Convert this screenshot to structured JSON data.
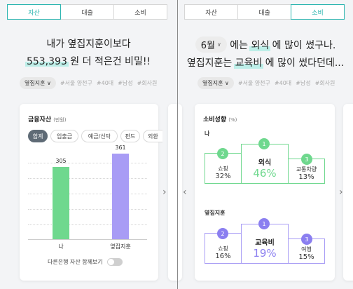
{
  "tabs": [
    "자산",
    "대출",
    "소비"
  ],
  "left": {
    "active_tab": "자산",
    "headline_line1": "내가 옆집지훈이보다",
    "headline_amount": "553,393",
    "headline_line2_rest": " 원 더 적은건 비밀!!",
    "tag_select": "옆집지훈",
    "tags": [
      "#서울 양천구",
      "#40대",
      "#남성",
      "#회사원"
    ],
    "card_title": "금융자산",
    "card_unit": "(만원)",
    "filters": [
      "합계",
      "입출금",
      "예금/신탁",
      "펀드",
      "외환"
    ],
    "toggle_label": "다른은행 자산 함께보기"
  },
  "right": {
    "active_tab": "소비",
    "month": "6월",
    "line1_a": "에는",
    "line1_highlight": "외식",
    "line1_b": "에 많이 썼구나.",
    "line2_a": "옆집지훈는",
    "line2_highlight": "교육비",
    "line2_b": "에 많이 썼다던데...",
    "tag_select": "옆집지훈",
    "tags": [
      "#서울 양천구",
      "#40대",
      "#남성",
      "#회사원"
    ],
    "card_title": "소비성향",
    "card_unit": "(%)",
    "me": {
      "title": "나",
      "ranks": [
        {
          "rank": "1",
          "label": "외식",
          "pct": "46%"
        },
        {
          "rank": "2",
          "label": "쇼핑",
          "pct": "32%"
        },
        {
          "rank": "3",
          "label": "교통차량",
          "pct": "13%"
        }
      ]
    },
    "neighbor": {
      "title": "옆집지훈",
      "ranks": [
        {
          "rank": "1",
          "label": "교육비",
          "pct": "19%"
        },
        {
          "rank": "2",
          "label": "쇼핑",
          "pct": "16%"
        },
        {
          "rank": "3",
          "label": "여행",
          "pct": "15%"
        }
      ]
    }
  },
  "icons": {
    "select_chevron": "chevron-down-icon",
    "next_arrow": "chevron-right-icon",
    "prev_arrow": "chevron-left-icon"
  },
  "colors": {
    "accent": "#2cb5b0",
    "highlight": "#bdeee8",
    "me_bar": "#6fd88e",
    "neighbor_bar": "#a89cf5",
    "me_rank": "#6fd88e",
    "neighbor_rank": "#8b7ff0"
  },
  "chart_data": {
    "type": "bar",
    "title": "금융자산",
    "ylabel": "(만원)",
    "categories": [
      "나",
      "옆집지훈"
    ],
    "values": [
      305,
      361
    ],
    "ylim": [
      0,
      400
    ]
  }
}
